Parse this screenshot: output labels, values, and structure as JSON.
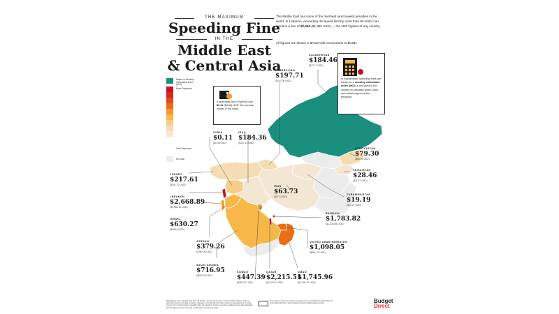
{
  "title": {
    "line1": "THE MAXIMUM",
    "line2": "Speeding Fine",
    "line3": "IN THE",
    "line4": "Middle East",
    "line5": "& Central Asia"
  },
  "intro": {
    "p1_a": "The Middle East has some of the harshest (and lowest) penalties in the world. In Lebanon, exceeding the speed limit by more than 60 km/hr can result in a fine of ",
    "p1_bold": "$2,669",
    "p1_b": " ($1,985 USD) — the 15th highest of any country.",
    "p2": "All figures are shown in $AUD with conversions to $USD."
  },
  "legend": {
    "top_label": "Based on Monthly Calculation Index (MCI)",
    "more_label": "More Expensive",
    "less_label": "Less Expensive",
    "nodata_label": "No Data",
    "colors": [
      "#1a8f7e",
      "#c8102e",
      "#d7261e",
      "#e04a1a",
      "#ea6e13",
      "#f29a2e",
      "#f5b849",
      "#f6cd86",
      "#f4dcb3",
      "#f3e6d2",
      "#ececec"
    ]
  },
  "callouts": {
    "syria": {
      "text_a": "A speeding fine in Syria is only ",
      "text_bold": "$0.11",
      "text_b": " ($0.08) USD, the second-lowest in the world."
    },
    "kazakhstan": {
      "text_a": "In Kazakhstan, speeding fines are based on a ",
      "text_bold": "monthly calculation index (MCI)",
      "text_b": ", a unit used in the country to calculate taxes, fines, and social payments like pensions."
    }
  },
  "countries": {
    "kazakhstan": {
      "name": "KAZAKHSTAN",
      "price": "$184.46",
      "usd": "($137.2 USD)"
    },
    "azerbaijan": {
      "name": "AZERBAIJAN",
      "price": "$197.71",
      "usd": "($147.06 USD)"
    },
    "syria": {
      "name": "SYRIA",
      "price": "$0.11",
      "usd": "($0.08 USD)"
    },
    "iraq": {
      "name": "IRAQ",
      "price": "$184.36",
      "usd": "($137.13 USD)"
    },
    "turkey": {
      "name": "TURKEY",
      "price": "$217.61",
      "usd": "($161.70 USD)"
    },
    "lebanon": {
      "name": "LEBANON",
      "price": "$2,668.89",
      "usd": "($1,985.12 USD)"
    },
    "israel": {
      "name": "ISRAEL",
      "price": "$630.27",
      "usd": "($468.8 USD)"
    },
    "jordan": {
      "name": "JORDAN",
      "price": "$379.26",
      "usd": "($282.09 USD)"
    },
    "saudi_arabia": {
      "name": "SAUDI ARABIA",
      "price": "$716.95",
      "usd": "($533.29 USD)"
    },
    "kuwait": {
      "name": "KUWAIT",
      "price": "$447.39",
      "usd": "($332.67 USD)"
    },
    "qatar": {
      "name": "QATAR",
      "price": "$2,215.51",
      "usd": "($1,647.9 USD)"
    },
    "oman": {
      "name": "OMAN",
      "price": "$1,745.96",
      "usd": "($1,300.37 USD)"
    },
    "uae": {
      "name": "UNITED ARAB EMIRATES",
      "price": "$1,098.05",
      "usd": "($816.77 USD)"
    },
    "bahrain": {
      "name": "BAHRAIN",
      "price": "$1,783.82",
      "usd": "($1,326.65 USD)"
    },
    "iran": {
      "name": "IRAN",
      "price": "$63.73",
      "usd": "($47.4 USD)"
    },
    "turkmenistan": {
      "name": "TURKMENISTAN",
      "price": "$19.19",
      "usd": "($14.27 USD)"
    },
    "tajikistan": {
      "name": "TAJIKISTAN",
      "price": "$28.46",
      "usd": "($21.17 USD)"
    },
    "kyrgyzstan": {
      "name": "KYRGYZSTAN",
      "price": "$79.30",
      "usd": "($58.99 USD)"
    }
  },
  "footer": {
    "methodology": "Methodology: We reviewed data from US Airlines, the US government, the International Drivers Training and other government data and press releases to compile the list of the maximum speeding fines for each country. For countries where speeding fines are based on income, we took a median income and calculated the fine based on that. Fines are in AUD with conversion to USD.",
    "license": "This image is licensed under the Creative Commons Attribution-Share Alike 4.0 International license - www.creativecommons.org/licenses/by-sa/4.0",
    "logo_line1": "Budget",
    "logo_line2": "Direct"
  }
}
